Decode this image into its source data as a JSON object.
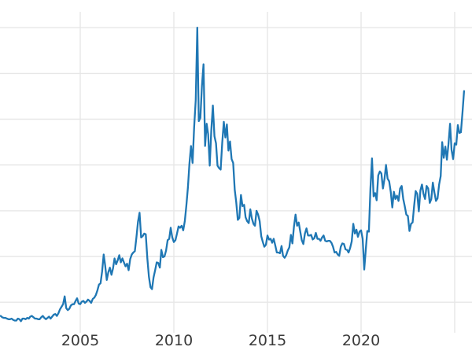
{
  "page": {
    "background": "#ffffff"
  },
  "chart_data": {
    "type": "line",
    "title": "",
    "legend": false,
    "grid": true,
    "x_axis": {
      "tick_labels": [
        "2005",
        "2010",
        "2015",
        "2020"
      ],
      "tick_years": [
        2005,
        2010,
        2015,
        2020
      ],
      "gridline_years": [
        2005,
        2010,
        2015,
        2020,
        2025
      ],
      "range_years": [
        2000.714,
        2025.924
      ]
    },
    "y_axis": {
      "tick_labels": [],
      "gridline_values": [
        7,
        14,
        21,
        28,
        35,
        42,
        49
      ],
      "range": [
        2.33,
        51.43
      ]
    },
    "styles": {
      "line_color": "#1f77b4",
      "line_width": 2.3,
      "grid_color": "#e7e7e7",
      "grid_width": 1.4,
      "tick_label_color": "#3a3a3a",
      "background": "#ffffff"
    },
    "series": [
      {
        "name": "series1",
        "color": "#1f77b4",
        "start": "2000-10",
        "interval": "monthly",
        "values": [
          4.9,
          4.7,
          4.6,
          4.6,
          4.5,
          4.4,
          4.4,
          4.5,
          4.3,
          4.2,
          4.2,
          4.5,
          4.4,
          4.1,
          4.5,
          4.5,
          4.4,
          4.6,
          4.5,
          4.8,
          4.9,
          4.7,
          4.5,
          4.5,
          4.4,
          4.4,
          4.7,
          4.9,
          4.6,
          4.4,
          4.6,
          4.8,
          4.5,
          4.8,
          5.1,
          5.2,
          4.9,
          5.3,
          5.9,
          6.3,
          6.7,
          7.9,
          6.1,
          5.8,
          6.0,
          6.5,
          6.7,
          6.7,
          7.2,
          7.6,
          6.8,
          6.7,
          7.1,
          7.2,
          6.9,
          7.1,
          7.4,
          7.2,
          6.9,
          7.5,
          7.7,
          8.1,
          8.8,
          9.7,
          9.9,
          11.7,
          14.3,
          12.6,
          10.4,
          11.6,
          12.3,
          11.2,
          12.2,
          13.7,
          12.8,
          13.4,
          14.2,
          13.1,
          13.7,
          13.1,
          12.5,
          12.9,
          11.9,
          13.6,
          14.3,
          14.6,
          14.8,
          16.9,
          19.3,
          20.7,
          16.9,
          17.1,
          17.5,
          17.4,
          13.7,
          10.9,
          9.3,
          9.0,
          10.8,
          11.9,
          13.1,
          13.0,
          12.3,
          15.0,
          13.9,
          14.0,
          14.9,
          16.5,
          16.7,
          18.4,
          16.9,
          16.2,
          16.5,
          17.5,
          18.6,
          18.4,
          18.7,
          18.0,
          19.4,
          21.8,
          24.6,
          28.2,
          30.9,
          28.3,
          33.8,
          37.9,
          49.0,
          34.7,
          35.2,
          40.1,
          43.4,
          30.9,
          34.3,
          32.7,
          27.9,
          33.3,
          37.1,
          32.4,
          31.3,
          27.9,
          27.5,
          27.3,
          31.4,
          34.6,
          32.2,
          34.2,
          30.2,
          31.6,
          28.9,
          28.3,
          24.2,
          22.3,
          19.6,
          19.9,
          23.4,
          21.7,
          21.9,
          20.0,
          19.4,
          19.1,
          21.2,
          19.8,
          19.0,
          18.7,
          21.0,
          20.4,
          19.4,
          17.1,
          16.2,
          15.5,
          15.8,
          17.2,
          16.6,
          16.7,
          16.1,
          16.7,
          15.7,
          14.6,
          14.6,
          14.5,
          15.6,
          14.1,
          13.8,
          14.2,
          14.9,
          15.4,
          17.3,
          16.0,
          18.6,
          20.4,
          18.7,
          19.2,
          17.8,
          16.5,
          15.9,
          17.5,
          18.3,
          17.2,
          17.2,
          17.3,
          16.6,
          16.8,
          17.6,
          16.7,
          16.7,
          16.4,
          16.9,
          17.2,
          16.4,
          16.3,
          16.4,
          16.4,
          16.1,
          15.5,
          14.6,
          14.7,
          14.3,
          14.1,
          15.5,
          16.0,
          15.9,
          15.1,
          15.0,
          14.6,
          15.3,
          16.3,
          19.0,
          17.5,
          18.1,
          17.0,
          17.8,
          18.0,
          16.7,
          12.0,
          15.1,
          17.9,
          17.8,
          24.4,
          29.0,
          23.2,
          23.7,
          22.6,
          26.4,
          27.0,
          26.7,
          24.4,
          25.9,
          28.0,
          25.9,
          25.5,
          23.9,
          21.5,
          23.9,
          22.8,
          23.3,
          22.5,
          24.4,
          24.8,
          22.8,
          21.7,
          20.4,
          20.2,
          17.9,
          19.0,
          19.2,
          21.7,
          24.0,
          23.6,
          20.9,
          24.1,
          25.0,
          23.6,
          22.8,
          24.8,
          24.4,
          22.2,
          22.8,
          25.3,
          23.8,
          22.5,
          22.9,
          25.0,
          26.3,
          31.5,
          29.1,
          30.8,
          28.8,
          31.2,
          34.3,
          30.3,
          28.9,
          31.3,
          31.1,
          34.1,
          32.9,
          33.0,
          36.0,
          39.3
        ]
      }
    ]
  }
}
